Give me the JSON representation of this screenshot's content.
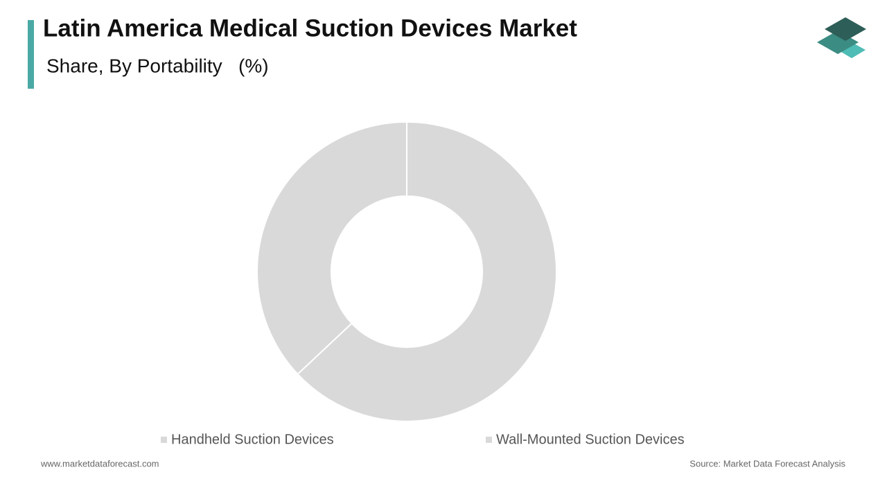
{
  "chart_data": {
    "type": "donut",
    "title": "Latin America Medical Suction Devices Market",
    "subtitle": "Share, By Portability   (%)",
    "categories": [
      "Handheld Suction Devices",
      "Wall-Mounted Suction Devices"
    ],
    "values": [
      63,
      37
    ],
    "colors": [
      "#d9d9d9",
      "#d9d9d9"
    ]
  },
  "footer": {
    "website": "www.marketdataforecast.com",
    "source": "Source: Market Data Forecast Analysis"
  }
}
